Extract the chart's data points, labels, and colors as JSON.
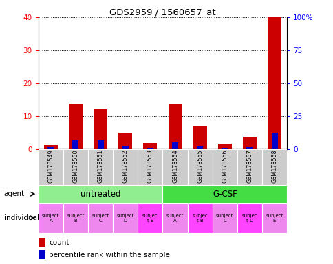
{
  "title": "GDS2959 / 1560657_at",
  "samples": [
    "GSM178549",
    "GSM178550",
    "GSM178551",
    "GSM178552",
    "GSM178553",
    "GSM178554",
    "GSM178555",
    "GSM178556",
    "GSM178557",
    "GSM178558"
  ],
  "count_values": [
    1.2,
    13.8,
    12.0,
    5.0,
    1.8,
    13.5,
    6.8,
    1.7,
    3.8,
    40.0
  ],
  "percentile_values": [
    1.5,
    7.0,
    6.5,
    2.5,
    0.8,
    5.0,
    2.0,
    0.5,
    1.5,
    12.5
  ],
  "ylim_left": [
    0,
    40
  ],
  "ylim_right": [
    0,
    100
  ],
  "yticks_left": [
    0,
    10,
    20,
    30,
    40
  ],
  "yticks_right": [
    0,
    25,
    50,
    75,
    100
  ],
  "ytick_labels_right": [
    "0",
    "25",
    "50",
    "75",
    "100%"
  ],
  "agent_groups": [
    {
      "label": "untreated",
      "start": 0,
      "end": 5,
      "color": "#90ee90"
    },
    {
      "label": "G-CSF",
      "start": 5,
      "end": 10,
      "color": "#44dd44"
    }
  ],
  "individuals": [
    {
      "label": "subject\nA",
      "bg": "#ee88ee"
    },
    {
      "label": "subject\nB",
      "bg": "#ee88ee"
    },
    {
      "label": "subject\nC",
      "bg": "#ee88ee"
    },
    {
      "label": "subject\nD",
      "bg": "#ee88ee"
    },
    {
      "label": "subjec\nt E",
      "bg": "#ff44ff"
    },
    {
      "label": "subject\nA",
      "bg": "#ee88ee"
    },
    {
      "label": "subjec\nt B",
      "bg": "#ff44ff"
    },
    {
      "label": "subject\nC",
      "bg": "#ee88ee"
    },
    {
      "label": "subjec\nt D",
      "bg": "#ff44ff"
    },
    {
      "label": "subject\nE",
      "bg": "#ee88ee"
    }
  ],
  "bar_color_count": "#cc0000",
  "bar_color_pct": "#0000cc",
  "bar_width": 0.55,
  "pct_bar_width": 0.25,
  "sample_bg_color": "#cccccc"
}
